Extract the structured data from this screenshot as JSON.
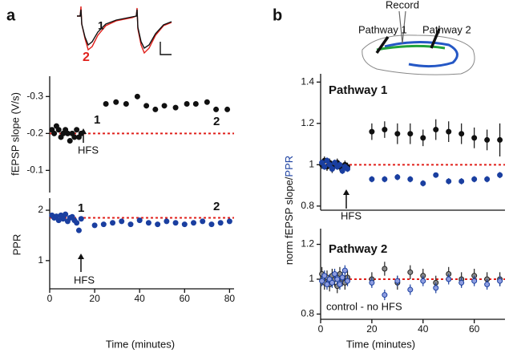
{
  "panel_labels": [
    "a",
    "b"
  ],
  "traces": {
    "labels": [
      {
        "text": "1",
        "color": "#111111"
      },
      {
        "text": "2",
        "color": "#e0201b"
      }
    ]
  },
  "schematic": {
    "record": "Record",
    "pathway1": "Pathway 1",
    "pathway2": "Pathway 2"
  },
  "chart_data": [
    {
      "type": "scatter",
      "ylabel": "fEPSP slope (V/s)",
      "ylim": [
        -0.04,
        -0.355
      ],
      "yticks": [
        -0.3,
        -0.2,
        -0.1
      ],
      "xlim": [
        0,
        82
      ],
      "x_axis": false,
      "reference_line": {
        "value": -0.2,
        "color": "#e0201b"
      },
      "labels": [
        {
          "text": "1",
          "color": "#111111"
        },
        {
          "text": "2",
          "color": "#e0201b"
        },
        {
          "text": "HFS",
          "color": "#111111"
        }
      ],
      "series": [
        {
          "color": "#111111",
          "x": [
            1,
            2,
            3,
            4,
            5,
            6,
            7,
            8,
            9,
            10,
            11,
            12,
            13,
            14,
            25,
            29.5,
            34,
            39,
            43,
            47,
            51,
            56,
            61,
            65,
            70,
            74,
            79
          ],
          "values": [
            -0.21,
            -0.2,
            -0.22,
            -0.21,
            -0.19,
            -0.2,
            -0.21,
            -0.2,
            -0.18,
            -0.2,
            -0.19,
            -0.21,
            -0.19,
            -0.2,
            -0.28,
            -0.285,
            -0.28,
            -0.3,
            -0.275,
            -0.265,
            -0.275,
            -0.27,
            -0.28,
            -0.28,
            -0.285,
            -0.265,
            -0.265
          ]
        }
      ]
    },
    {
      "type": "scatter",
      "ylabel": "PPR",
      "xlabel": "Time (minutes)",
      "ylim": [
        0.44,
        2.24
      ],
      "yticks": [
        1,
        2
      ],
      "xlim": [
        0,
        82
      ],
      "xticks": [
        0,
        20,
        40,
        60,
        80
      ],
      "x_axis": true,
      "reference_line": {
        "value": 1.85,
        "color": "#e0201b"
      },
      "labels": [
        {
          "text": "1",
          "color": "#111111"
        },
        {
          "text": "2",
          "color": "#e0201b"
        },
        {
          "text": "HFS",
          "color": "#111111"
        }
      ],
      "series": [
        {
          "color": "#1a3fa0",
          "x": [
            1,
            2,
            3,
            4,
            5,
            6,
            7,
            8,
            9,
            10,
            11,
            12,
            13,
            14,
            20,
            24,
            28,
            32,
            36,
            40,
            44,
            48,
            52,
            56,
            60,
            64,
            68,
            72,
            76,
            80
          ],
          "values": [
            1.9,
            1.85,
            1.88,
            1.8,
            1.9,
            1.83,
            1.92,
            1.78,
            1.85,
            1.87,
            1.8,
            1.75,
            1.6,
            1.83,
            1.7,
            1.72,
            1.75,
            1.78,
            1.72,
            1.8,
            1.75,
            1.72,
            1.78,
            1.75,
            1.72,
            1.75,
            1.78,
            1.72,
            1.75,
            1.78
          ]
        }
      ]
    },
    {
      "type": "scatter",
      "title": "Pathway 1",
      "ylabel": [
        "norm fEPSP slope/",
        "PPR"
      ],
      "ylabel_colors": [
        "#111111",
        "#1a3fa0"
      ],
      "ylim": [
        0.78,
        1.44
      ],
      "yticks": [
        0.8,
        1.0,
        1.2,
        1.4
      ],
      "xlim": [
        0,
        72
      ],
      "x_axis": true,
      "reference_line": {
        "value": 1.0,
        "color": "#e0201b"
      },
      "labels": [
        {
          "text": "HFS",
          "color": "#111111"
        }
      ],
      "series": [
        {
          "color": "#111111",
          "edge_color": "#111111",
          "x": [
            0.5,
            1.5,
            2.5,
            3.5,
            4.5,
            5.5,
            6.5,
            7.5,
            8.5,
            9.5,
            10.5,
            20,
            25,
            30,
            35,
            40,
            45,
            50,
            55,
            60,
            65,
            70
          ],
          "values": [
            1.0,
            1.02,
            0.99,
            1.01,
            0.98,
            1.0,
            1.01,
            0.99,
            0.98,
            1.0,
            0.99,
            1.16,
            1.17,
            1.15,
            1.15,
            1.13,
            1.17,
            1.16,
            1.15,
            1.13,
            1.12,
            1.12
          ],
          "errors": [
            0.02,
            0.02,
            0.02,
            0.02,
            0.02,
            0.02,
            0.02,
            0.02,
            0.02,
            0.02,
            0.02,
            0.04,
            0.04,
            0.05,
            0.05,
            0.04,
            0.05,
            0.05,
            0.05,
            0.05,
            0.05,
            0.08
          ]
        },
        {
          "color": "#1a3fa0",
          "edge_color": "#1a3fa0",
          "x": [
            0.5,
            1.5,
            2.5,
            3.5,
            4.5,
            5.5,
            6.5,
            7.5,
            8.5,
            9.5,
            10.5,
            20,
            25,
            30,
            35,
            40,
            45,
            50,
            55,
            60,
            65,
            70
          ],
          "values": [
            1.01,
            0.99,
            1.02,
            1.0,
            0.98,
            1.01,
            0.99,
            1.0,
            0.97,
            0.99,
            0.98,
            0.93,
            0.93,
            0.94,
            0.93,
            0.91,
            0.95,
            0.92,
            0.92,
            0.93,
            0.93,
            0.95
          ],
          "errors": [
            0.015,
            0.015,
            0.015,
            0.015,
            0.015,
            0.015,
            0.015,
            0.015,
            0.015,
            0.015,
            0.015,
            0.015,
            0.015,
            0.015,
            0.015,
            0.015,
            0,
            0.015,
            0.015,
            0.015,
            0.015,
            0.015
          ]
        }
      ]
    },
    {
      "type": "scatter",
      "title": "Pathway 2",
      "xlabel": "Time (minutes)",
      "ylim": [
        0.77,
        1.29
      ],
      "yticks": [
        0.8,
        1.0,
        1.2
      ],
      "xlim": [
        0,
        72
      ],
      "xticks": [
        0,
        20,
        40,
        60
      ],
      "x_axis": true,
      "reference_line": {
        "value": 1.0,
        "color": "#e0201b"
      },
      "labels": [
        {
          "text": "control - no HFS",
          "color": "#111111"
        }
      ],
      "series": [
        {
          "color": "#8a8a8a",
          "edge_color": "#222222",
          "x": [
            0.5,
            1.5,
            2.5,
            3.5,
            4.5,
            5.5,
            6.5,
            7.5,
            8.5,
            9.5,
            10.5,
            20,
            25,
            30,
            35,
            40,
            45,
            50,
            55,
            60,
            65,
            70
          ],
          "values": [
            1.03,
            0.98,
            1.01,
            0.97,
            1.02,
            1.0,
            0.96,
            1.03,
            1.0,
            0.98,
            1.01,
            1.0,
            1.06,
            0.98,
            1.04,
            1.02,
            0.98,
            1.03,
            1.0,
            1.02,
            1.0,
            1.0
          ],
          "errors": [
            0.04,
            0.04,
            0.04,
            0.04,
            0.04,
            0.04,
            0.04,
            0.04,
            0.04,
            0.04,
            0.04,
            0.04,
            0.04,
            0.04,
            0.04,
            0.04,
            0.04,
            0.04,
            0.04,
            0.04,
            0.04,
            0.04
          ]
        },
        {
          "color": "#8f9ee0",
          "edge_color": "#1a3fa0",
          "x": [
            0.5,
            1.5,
            2.5,
            3.5,
            4.5,
            5.5,
            6.5,
            7.5,
            8.5,
            9.5,
            10.5,
            20,
            25,
            30,
            35,
            40,
            45,
            50,
            55,
            60,
            65,
            70
          ],
          "values": [
            0.99,
            1.02,
            0.97,
            1.0,
            0.98,
            1.03,
            1.0,
            0.97,
            1.01,
            1.05,
            0.99,
            0.98,
            0.91,
            0.99,
            0.94,
            0.99,
            0.95,
            1.0,
            0.98,
            0.99,
            0.97,
            0.99
          ],
          "errors": [
            0.03,
            0.03,
            0.03,
            0.03,
            0.03,
            0.03,
            0.03,
            0.03,
            0.03,
            0.03,
            0.03,
            0.03,
            0.03,
            0.03,
            0.03,
            0.03,
            0.03,
            0.03,
            0.03,
            0.03,
            0.03,
            0.03
          ]
        }
      ]
    }
  ]
}
